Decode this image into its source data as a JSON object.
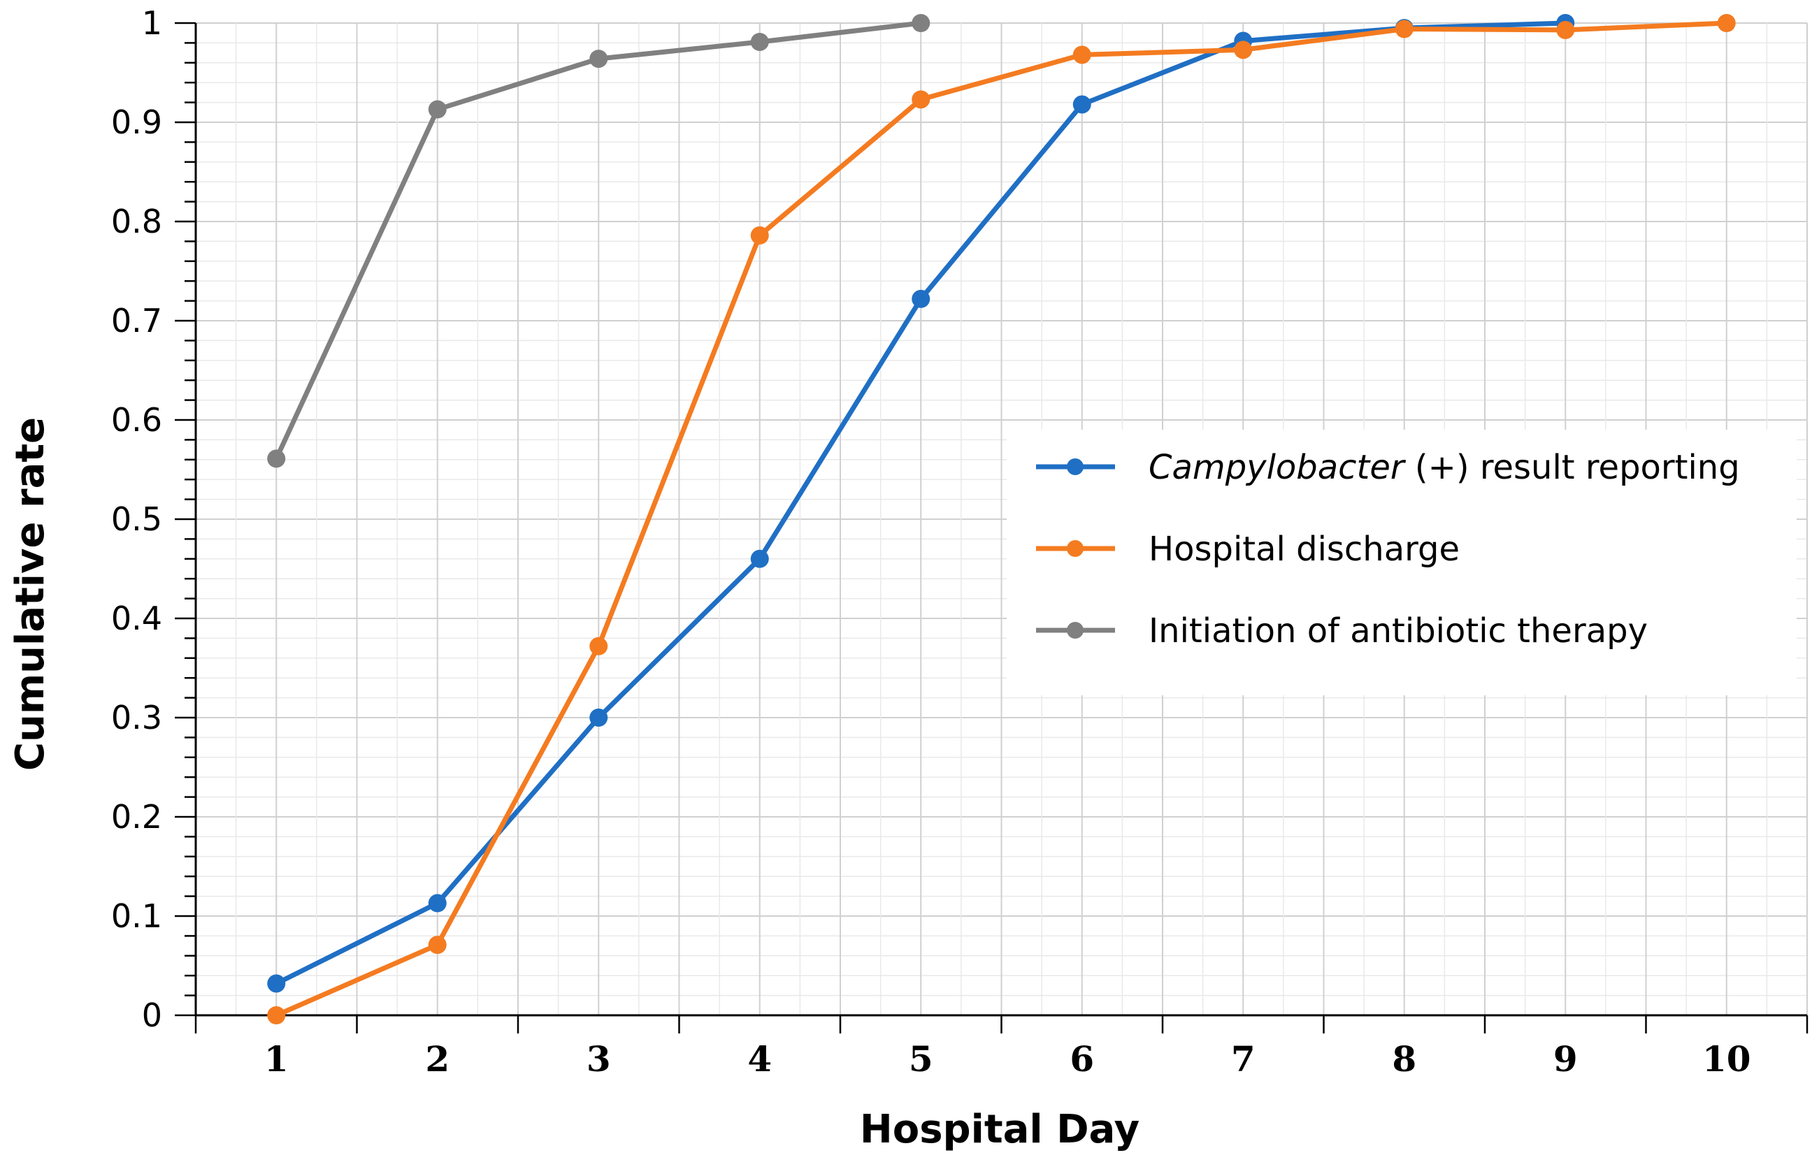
{
  "chart_data": {
    "type": "line",
    "title": "",
    "xlabel": "Hospital Day",
    "ylabel": "Cumulative rate",
    "x": [
      1,
      2,
      3,
      4,
      5,
      6,
      7,
      8,
      9,
      10
    ],
    "x_tick_labels": [
      "1",
      "2",
      "3",
      "4",
      "5",
      "6",
      "7",
      "8",
      "9",
      "10"
    ],
    "y_tick_labels": [
      "0",
      "0.1",
      "0.2",
      "0.3",
      "0.4",
      "0.5",
      "0.6",
      "0.7",
      "0.8",
      "0.9",
      "1"
    ],
    "xlim": [
      0.5,
      10.5
    ],
    "ylim": [
      0,
      1
    ],
    "grid": true,
    "legend_position": "right",
    "series": [
      {
        "name_italic": "Campylobacter",
        "name_rest": " (+) result reporting",
        "color": "#1f6fc4",
        "x": [
          1,
          2,
          3,
          4,
          5,
          6,
          7,
          8,
          9
        ],
        "values": [
          0.032,
          0.113,
          0.3,
          0.46,
          0.722,
          0.918,
          0.982,
          0.995,
          1.0
        ]
      },
      {
        "name_italic": "",
        "name_rest": "Hospital discharge",
        "color": "#f47b20",
        "x": [
          1,
          2,
          3,
          4,
          5,
          6,
          7,
          8,
          9,
          10
        ],
        "values": [
          0.0,
          0.071,
          0.372,
          0.786,
          0.923,
          0.968,
          0.973,
          0.994,
          0.993,
          1.0
        ]
      },
      {
        "name_italic": "",
        "name_rest": "Initiation of antibiotic therapy",
        "color": "#808080",
        "x": [
          1,
          2,
          3,
          4,
          5
        ],
        "values": [
          0.561,
          0.913,
          0.964,
          0.981,
          1.0
        ]
      }
    ]
  }
}
